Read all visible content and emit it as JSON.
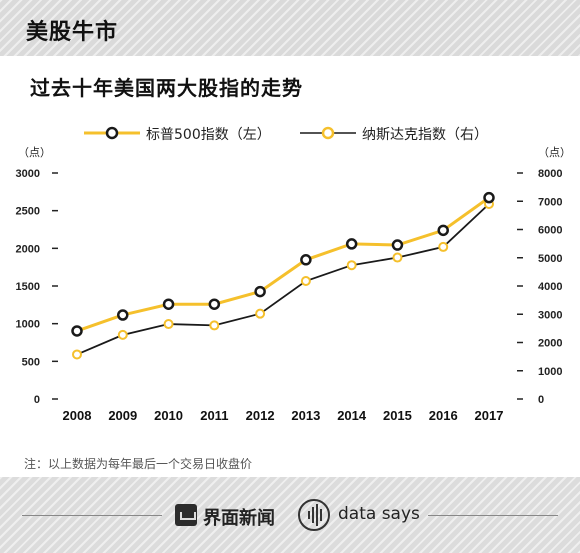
{
  "header": {
    "label": "美股牛市"
  },
  "chart_data": {
    "type": "line",
    "title": "过去十年美国两大股指的走势",
    "categories": [
      "2008",
      "2009",
      "2010",
      "2011",
      "2012",
      "2013",
      "2014",
      "2015",
      "2016",
      "2017"
    ],
    "series": [
      {
        "name": "标普500指数（左）",
        "axis": "left",
        "color": "#f5c02c",
        "values": [
          903,
          1115,
          1258,
          1258,
          1426,
          1848,
          2059,
          2044,
          2239,
          2673
        ]
      },
      {
        "name": "纳斯达克指数（右）",
        "axis": "right",
        "color": "#1a1a1a",
        "values": [
          1577,
          2269,
          2653,
          2605,
          3020,
          4177,
          4736,
          5007,
          5383,
          6903
        ]
      }
    ],
    "y_left": {
      "unit": "（点）",
      "ylim": [
        0,
        3000
      ],
      "ticks": [
        "0",
        "500",
        "1000",
        "1500",
        "2000",
        "2500",
        "3000"
      ]
    },
    "y_right": {
      "unit": "（点）",
      "ylim": [
        0,
        8000
      ],
      "ticks": [
        "0",
        "1000",
        "2000",
        "3000",
        "4000",
        "5000",
        "6000",
        "7000",
        "8000"
      ]
    },
    "legend_position": "top",
    "grid": false
  },
  "note": "注：以上数据为每年最后一个交易日收盘价",
  "footer": {
    "brand_cn": "界面新闻",
    "brand_en": "data says"
  }
}
